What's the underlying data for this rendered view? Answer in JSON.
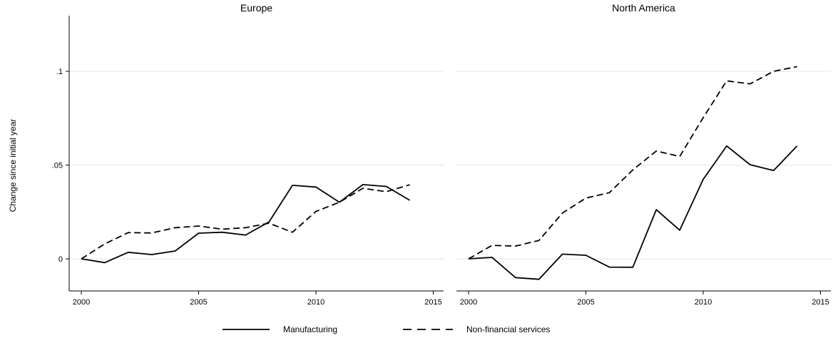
{
  "chart_data": [
    {
      "type": "line",
      "title": "Europe",
      "ylabel": "Change since initial year",
      "xlabel": "",
      "x": [
        2000,
        2001,
        2002,
        2003,
        2004,
        2005,
        2006,
        2007,
        2008,
        2009,
        2010,
        2011,
        2012,
        2013,
        2014
      ],
      "xlim": [
        2000,
        2015
      ],
      "ylim": [
        -0.013,
        0.1
      ],
      "xticks": [
        {
          "value": 2000,
          "label": "2000"
        },
        {
          "value": 2005,
          "label": "2005"
        },
        {
          "value": 2010,
          "label": "2010"
        },
        {
          "value": 2015,
          "label": "2015"
        }
      ],
      "yticks": [
        {
          "value": 0,
          "label": "0"
        },
        {
          "value": 0.05,
          "label": ".05"
        },
        {
          "value": 0.1,
          "label": ".1"
        }
      ],
      "grid": true,
      "series": [
        {
          "name": "Manufacturing",
          "style": "solid",
          "values": [
            0,
            -0.002,
            0.0035,
            0.0023,
            0.0042,
            0.0137,
            0.0142,
            0.0127,
            0.0197,
            0.0392,
            0.0383,
            0.0302,
            0.0396,
            0.0386,
            0.0312
          ]
        },
        {
          "name": "Non-financial services",
          "style": "dashed",
          "values": [
            0,
            0.008,
            0.014,
            0.0138,
            0.0166,
            0.0175,
            0.0158,
            0.0166,
            0.019,
            0.0142,
            0.0253,
            0.0302,
            0.0376,
            0.0358,
            0.0395
          ]
        }
      ]
    },
    {
      "type": "line",
      "title": "North America",
      "ylabel": "",
      "xlabel": "",
      "x": [
        2000,
        2001,
        2002,
        2003,
        2004,
        2005,
        2006,
        2007,
        2008,
        2009,
        2010,
        2011,
        2012,
        2013,
        2014
      ],
      "xlim": [
        2000,
        2015
      ],
      "ylim": [
        -0.013,
        0.1
      ],
      "xticks": [
        {
          "value": 2000,
          "label": "2000"
        },
        {
          "value": 2005,
          "label": "2005"
        },
        {
          "value": 2010,
          "label": "2010"
        },
        {
          "value": 2015,
          "label": "2015"
        }
      ],
      "grid": true,
      "series": [
        {
          "name": "Manufacturing",
          "style": "solid",
          "values": [
            0,
            0.0008,
            -0.01,
            -0.0109,
            0.0025,
            0.0019,
            -0.0044,
            -0.0045,
            0.0262,
            0.0153,
            0.0424,
            0.0602,
            0.0502,
            0.0471,
            0.0602
          ]
        },
        {
          "name": "Non-financial services",
          "style": "dashed",
          "values": [
            0,
            0.0072,
            0.0068,
            0.0098,
            0.0244,
            0.0324,
            0.0353,
            0.0474,
            0.0575,
            0.0546,
            0.0753,
            0.0949,
            0.0933,
            0.1,
            0.1025
          ]
        }
      ]
    }
  ],
  "legend": {
    "placement": "bottom",
    "items": [
      {
        "label": "Manufacturing",
        "style": "solid"
      },
      {
        "label": "Non-financial services",
        "style": "dashed"
      }
    ]
  },
  "colors": {
    "line": "#000000",
    "grid": "#e6e6e6",
    "axis": "#000000",
    "background": "#ffffff"
  }
}
